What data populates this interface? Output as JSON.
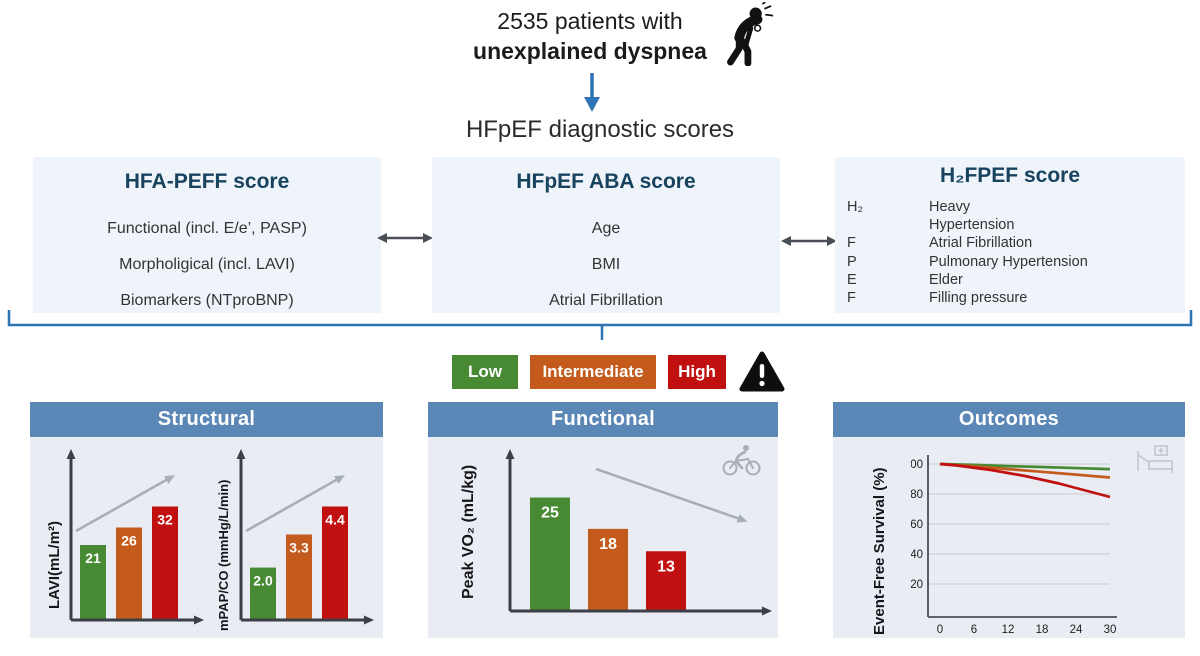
{
  "header": {
    "line1": "2535 patients with",
    "line2": "unexplained dyspnea",
    "subtitle": "HFpEF diagnostic scores"
  },
  "scores": [
    {
      "title": "HFA-PEFF score",
      "items": [
        "Functional (incl. E/e’, PASP)",
        "Morpholigical (incl. LAVI)",
        "Biomarkers (NTproBNP)"
      ]
    },
    {
      "title": "HFpEF ABA score",
      "items": [
        "Age",
        "BMI",
        "Atrial Fibrillation"
      ]
    },
    {
      "title": "H₂FPEF score",
      "rows": [
        {
          "letter": "H₂",
          "desc": "Heavy"
        },
        {
          "letter": "",
          "desc": "Hypertension"
        },
        {
          "letter": "F",
          "desc": "Atrial Fibrillation"
        },
        {
          "letter": "P",
          "desc": "Pulmonary Hypertension"
        },
        {
          "letter": "E",
          "desc": "Elder"
        },
        {
          "letter": "F",
          "desc": "Filling pressure"
        }
      ]
    }
  ],
  "legend": {
    "low": "Low",
    "intermediate": "Intermediate",
    "high": "High",
    "colors": {
      "low": "#478a33",
      "intermediate": "#c45b1c",
      "high": "#c01010"
    }
  },
  "panels": [
    {
      "title": "Structural"
    },
    {
      "title": "Functional"
    },
    {
      "title": "Outcomes"
    }
  ],
  "icons": {
    "dyspnea_person": "person bent over with dyspnea",
    "down_arrow": "blue downward arrow",
    "double_arrow": "two-headed horizontal arrow",
    "warning": "black warning triangle",
    "cyclist": "gray cyclist",
    "hospital_bed": "gray hospital bed"
  },
  "colors": {
    "accent_blue": "#2e74b5",
    "header_band_blue": "#5b87b7",
    "box_bg": "#eff3fa",
    "panel_bg": "#e9edf3",
    "title_navy": "#17435f",
    "green": "#478a33",
    "orange": "#c45b1c",
    "red": "#c01010"
  },
  "chart_data": [
    {
      "id": "lavi",
      "type": "bar",
      "title": "",
      "ylabel": "LAVI(mL/m²)",
      "xlabel": "",
      "categories": [
        "Low",
        "Intermediate",
        "High"
      ],
      "values": [
        21,
        26,
        32
      ],
      "labels": [
        "21",
        "26",
        "32"
      ],
      "colors": [
        "#478a33",
        "#c45b1c",
        "#c01010"
      ],
      "ylim": [
        0,
        32
      ],
      "trend": "increasing",
      "grid": false
    },
    {
      "id": "mpap",
      "type": "bar",
      "title": "",
      "ylabel": "mPAP/CO (mmHg/L/min)",
      "xlabel": "",
      "categories": [
        "Low",
        "Intermediate",
        "High"
      ],
      "values": [
        2.0,
        3.3,
        4.4
      ],
      "labels": [
        "2.0",
        "3.3",
        "4.4"
      ],
      "colors": [
        "#478a33",
        "#c45b1c",
        "#c01010"
      ],
      "ylim": [
        0,
        4.4
      ],
      "trend": "increasing",
      "grid": false
    },
    {
      "id": "vo2",
      "type": "bar",
      "title": "",
      "ylabel": "Peak VO₂ (mL/kg)",
      "xlabel": "",
      "categories": [
        "Low",
        "Intermediate",
        "High"
      ],
      "values": [
        25,
        18,
        13
      ],
      "labels": [
        "25",
        "18",
        "13"
      ],
      "colors": [
        "#478a33",
        "#c45b1c",
        "#c01010"
      ],
      "ylim": [
        0,
        25
      ],
      "trend": "decreasing",
      "grid": false
    },
    {
      "id": "survival",
      "type": "line",
      "title": "",
      "ylabel": "Event-Free Survival (%)",
      "xlabel": "",
      "xlim": [
        0,
        30
      ],
      "ylim": [
        0,
        100
      ],
      "x_ticks": [
        0,
        6,
        12,
        18,
        24,
        30
      ],
      "y_ticks": [
        100,
        80,
        60,
        40,
        20
      ],
      "grid": true,
      "legend_position": "none",
      "series": [
        {
          "name": "Low",
          "color": "#478a33",
          "points": [
            [
              0,
              100
            ],
            [
              6,
              99.4
            ],
            [
              12,
              98.6
            ],
            [
              18,
              98
            ],
            [
              24,
              97.3
            ],
            [
              30,
              96.6
            ]
          ]
        },
        {
          "name": "Intermediate",
          "color": "#c45b1c",
          "points": [
            [
              0,
              100
            ],
            [
              6,
              98.4
            ],
            [
              12,
              96.6
            ],
            [
              18,
              94.8
            ],
            [
              24,
              92.9
            ],
            [
              30,
              91
            ]
          ]
        },
        {
          "name": "High",
          "color": "#c01010",
          "points": [
            [
              0,
              100
            ],
            [
              3,
              99
            ],
            [
              6,
              97.5
            ],
            [
              9,
              96
            ],
            [
              12,
              94
            ],
            [
              15,
              92
            ],
            [
              18,
              89.5
            ],
            [
              21,
              87
            ],
            [
              24,
              84
            ],
            [
              27,
              81
            ],
            [
              30,
              78
            ]
          ]
        }
      ]
    }
  ]
}
